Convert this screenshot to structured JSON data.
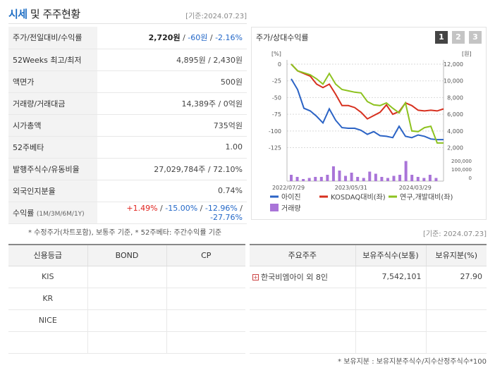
{
  "header": {
    "title_accent": "시세",
    "title_rest": " 및 주주현황",
    "date": "[기준:2024.07.23]"
  },
  "stock": {
    "rows": [
      {
        "label": "주가/전일대비/수익률"
      },
      {
        "label": "52Weeks 최고/최저",
        "value": "4,895원 / 2,430원"
      },
      {
        "label": "액면가",
        "value": "500원"
      },
      {
        "label": "거래량/거래대금",
        "value": "14,389주 / 0억원"
      },
      {
        "label": "시가총액",
        "value": "735억원"
      },
      {
        "label": "52주베타",
        "value": "1.00"
      },
      {
        "label": "발행주식수/유동비율",
        "value": "27,029,784주 / 72.10%"
      },
      {
        "label": "외국인지분율",
        "value": "0.74%"
      },
      {
        "label": "수익률"
      }
    ],
    "price": "2,720원",
    "sep": " / ",
    "change": "-60원",
    "change_pct": "-2.16%",
    "return_label": "수익률",
    "return_period": "(1M/3M/6M/1Y)",
    "return_1m": "+1.49%",
    "return_3m": "-15.00%",
    "return_6m": "-12.96%",
    "return_1y": "-27.76%",
    "note": "* 수정주가(차트포함), 보통주 기준, * 52주베타: 주간수익률 기준"
  },
  "chart": {
    "title": "주가/상대수익률",
    "pages": [
      "1",
      "2",
      "3"
    ],
    "colors": {
      "stock": "#2b63c5",
      "kosdaq": "#d7301f",
      "industry": "#8dc21f",
      "volume": "#a974d8"
    }
  },
  "chart_data": {
    "type": "line",
    "x_ticks": [
      "2022/07/29",
      "2023/05/31",
      "2024/03/29"
    ],
    "y_left_unit": "[%]",
    "y_left_ticks": [
      0,
      -25,
      -50,
      -75,
      -100,
      -125
    ],
    "y_right_unit": "[원]",
    "y_right_ticks": [
      "12,000",
      "10,000",
      "8,000",
      "6,000",
      "4,000",
      "2,000"
    ],
    "volume_ticks": [
      "200,000",
      "100,000",
      "0"
    ],
    "series": [
      {
        "name": "아이진",
        "values": [
          -22,
          -38,
          -66,
          -70,
          -78,
          -88,
          -67,
          -84,
          -95,
          -96,
          -96,
          -99,
          -105,
          -101,
          -107,
          -108,
          -110,
          -93,
          -108,
          -110,
          -106,
          -108,
          -112,
          -113,
          -113
        ]
      },
      {
        "name": "KOSDAQ대비(좌)",
        "values": [
          0,
          -10,
          -14,
          -18,
          -30,
          -35,
          -30,
          -45,
          -62,
          -62,
          -65,
          -72,
          -82,
          -77,
          -72,
          -61,
          -75,
          -71,
          -58,
          -62,
          -69,
          -70,
          -69,
          -70,
          -67
        ]
      },
      {
        "name": "연구,개발대비(좌)",
        "values": [
          0,
          -10,
          -13,
          -16,
          -22,
          -30,
          -14,
          -30,
          -38,
          -40,
          -42,
          -43,
          -56,
          -61,
          -62,
          -58,
          -66,
          -73,
          -58,
          -100,
          -101,
          -95,
          -93,
          -118,
          -118
        ]
      }
    ],
    "volume": {
      "name": "거래량",
      "values": [
        0.3,
        0.2,
        0.1,
        0.15,
        0.2,
        0.2,
        0.3,
        0.7,
        0.5,
        0.25,
        0.4,
        0.2,
        0.15,
        0.45,
        0.35,
        0.2,
        0.15,
        0.25,
        0.3,
        0.95,
        0.3,
        0.2,
        0.15,
        0.3,
        0.15
      ]
    }
  },
  "credit": {
    "headers": [
      "신용등급",
      "BOND",
      "CP"
    ],
    "rows": [
      [
        "KIS",
        "",
        ""
      ],
      [
        "KR",
        "",
        ""
      ],
      [
        "NICE",
        "",
        ""
      ],
      [
        "",
        "",
        ""
      ]
    ]
  },
  "holders": {
    "date": "[기준: 2024.07.23]",
    "headers": [
      "주요주주",
      "보유주식수(보통)",
      "보유지분(%)"
    ],
    "rows": [
      [
        "한국비엠아이 외 8인",
        "7,542,101",
        "27.90"
      ],
      [
        "",
        "",
        ""
      ],
      [
        "",
        "",
        ""
      ],
      [
        "",
        "",
        ""
      ]
    ],
    "note": "* 보유지분 : 보유지분주식수/지수산정주식수*100"
  }
}
